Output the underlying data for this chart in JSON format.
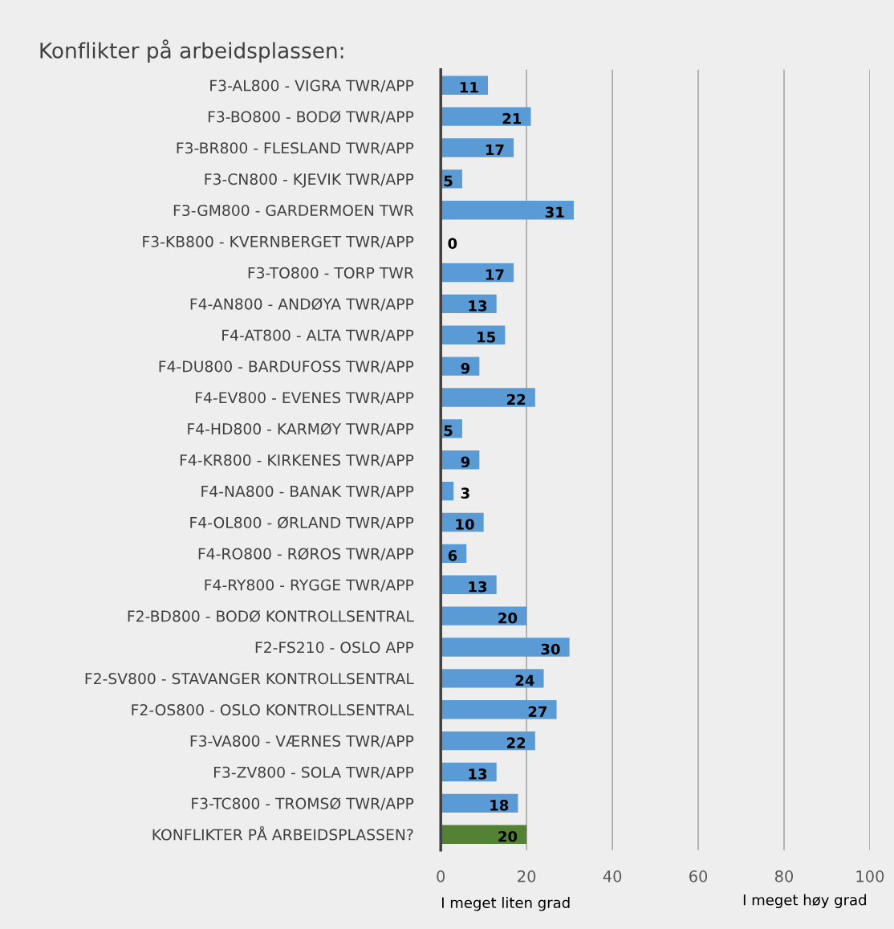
{
  "chart_data": {
    "type": "bar",
    "orientation": "horizontal",
    "title": "Konflikter på arbeidsplassen:",
    "categories": [
      "F3-AL800 - VIGRA TWR/APP",
      "F3-BO800 - BODØ TWR/APP",
      "F3-BR800 - FLESLAND TWR/APP",
      "F3-CN800 - KJEVIK TWR/APP",
      "F3-GM800 - GARDERMOEN TWR",
      "F3-KB800 - KVERNBERGET TWR/APP",
      "F3-TO800 - TORP TWR",
      "F4-AN800 - ANDØYA TWR/APP",
      "F4-AT800 - ALTA TWR/APP",
      "F4-DU800 - BARDUFOSS TWR/APP",
      "F4-EV800 - EVENES TWR/APP",
      "F4-HD800 - KARMØY TWR/APP",
      "F4-KR800 - KIRKENES TWR/APP",
      "F4-NA800 - BANAK TWR/APP",
      "F4-OL800 - ØRLAND TWR/APP",
      "F4-RO800 - RØROS TWR/APP",
      "F4-RY800 - RYGGE TWR/APP",
      "F2-BD800 - BODØ KONTROLLSENTRAL",
      "F2-FS210 - OSLO APP",
      "F2-SV800 - STAVANGER KONTROLLSENTRAL",
      "F2-OS800 - OSLO KONTROLLSENTRAL",
      "F3-VA800 - VÆRNES TWR/APP",
      "F3-ZV800 - SOLA TWR/APP",
      "F3-TC800 - TROMSØ TWR/APP",
      "KONFLIKTER PÅ ARBEIDSPLASSEN?"
    ],
    "values": [
      11,
      21,
      17,
      5,
      31,
      0,
      17,
      13,
      15,
      9,
      22,
      5,
      9,
      3,
      10,
      6,
      13,
      20,
      30,
      24,
      27,
      22,
      13,
      18,
      20
    ],
    "colors": [
      "#5b9bd5",
      "#5b9bd5",
      "#5b9bd5",
      "#5b9bd5",
      "#5b9bd5",
      "#5b9bd5",
      "#5b9bd5",
      "#5b9bd5",
      "#5b9bd5",
      "#5b9bd5",
      "#5b9bd5",
      "#5b9bd5",
      "#5b9bd5",
      "#5b9bd5",
      "#5b9bd5",
      "#5b9bd5",
      "#5b9bd5",
      "#5b9bd5",
      "#5b9bd5",
      "#5b9bd5",
      "#5b9bd5",
      "#5b9bd5",
      "#5b9bd5",
      "#5b9bd5",
      "#548235"
    ],
    "xlim": [
      0,
      100
    ],
    "xticks": [
      0,
      20,
      40,
      60,
      80,
      100
    ],
    "grid": "x",
    "data_labels": true,
    "annotations": [
      "I meget liten grad",
      "I meget høy grad"
    ]
  }
}
